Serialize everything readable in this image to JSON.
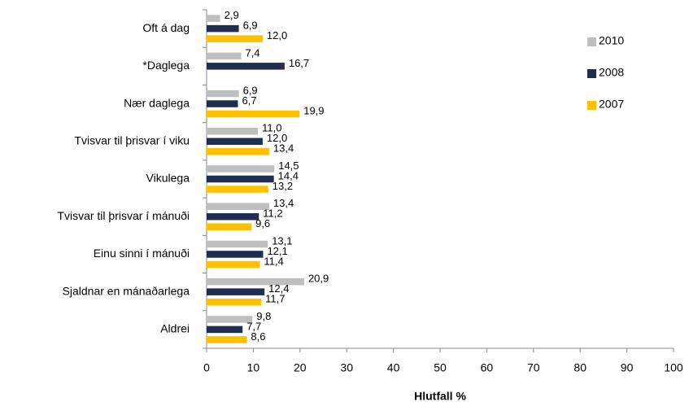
{
  "chart_data": {
    "type": "bar",
    "orientation": "horizontal",
    "x_label": "Hlutfall %",
    "categories": [
      "Oft á dag",
      "*Daglega",
      "Nær daglega",
      "Tvisvar til þrisvar í viku",
      "Vikulega",
      "Tvisvar til þrisvar í mánuði",
      "Einu sinni í mánuði",
      "Sjaldnar en mánaðarlega",
      "Aldrei"
    ],
    "series": [
      {
        "name": "2010",
        "color": "#bfbfbf",
        "values": [
          2.9,
          7.4,
          6.9,
          11.0,
          14.5,
          13.4,
          13.1,
          20.9,
          9.8
        ],
        "value_labels": [
          "2,9",
          "7,4",
          "6,9",
          "11,0",
          "14,5",
          "13,4",
          "13,1",
          "20,9",
          "9,8"
        ]
      },
      {
        "name": "2008",
        "color": "#1f2d4e",
        "values": [
          6.9,
          16.7,
          6.7,
          12.0,
          14.4,
          11.2,
          12.1,
          12.4,
          7.7
        ],
        "value_labels": [
          "6,9",
          "16,7",
          "6,7",
          "12,0",
          "14,4",
          "11,2",
          "12,1",
          "12,4",
          "7,7"
        ]
      },
      {
        "name": "2007",
        "color": "#ffc000",
        "values": [
          12.0,
          null,
          19.9,
          13.4,
          13.2,
          9.6,
          11.4,
          11.7,
          8.6
        ],
        "value_labels": [
          "12,0",
          null,
          "19,9",
          "13,4",
          "13,2",
          "9,6",
          "11,4",
          "11,7",
          "8,6"
        ]
      }
    ],
    "xlim": [
      0,
      100
    ],
    "xticks": [
      0,
      10,
      20,
      30,
      40,
      50,
      60,
      70,
      80,
      90,
      100
    ],
    "grid": false,
    "legend": "top-right"
  }
}
